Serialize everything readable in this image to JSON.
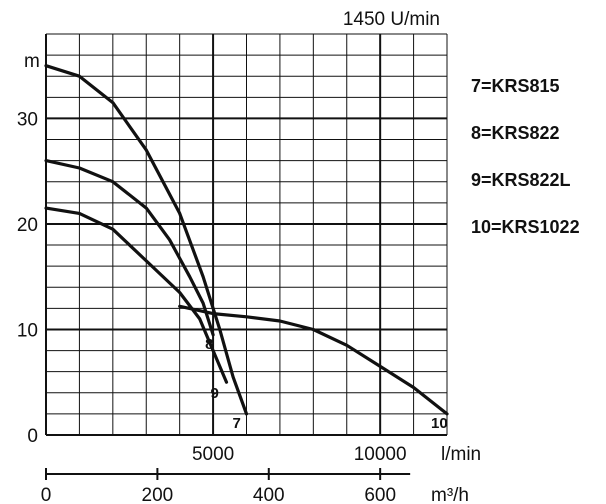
{
  "chart_data": {
    "type": "line",
    "title": "1450 U/min",
    "ylabel": "m",
    "x_primary_label": "l/min",
    "x_secondary_label": "m³/h",
    "xlim_lmin": [
      0,
      12000
    ],
    "ylim": [
      0,
      38
    ],
    "x_primary_ticks": [
      "5000",
      "10000"
    ],
    "x_primary_tick_values": [
      5000,
      10000
    ],
    "x_secondary_ticks": [
      "0",
      "200",
      "400",
      "600"
    ],
    "x_secondary_tick_values": [
      0,
      200,
      400,
      600
    ],
    "y_ticks": [
      "0",
      "10",
      "20",
      "30"
    ],
    "y_tick_values": [
      0,
      10,
      20,
      30
    ],
    "grid": true,
    "legend_position": "right",
    "series": [
      {
        "id": "7",
        "name": "7=KRS815",
        "label": "7",
        "points": [
          [
            0,
            35
          ],
          [
            1000,
            34
          ],
          [
            2000,
            31.5
          ],
          [
            3000,
            27
          ],
          [
            4000,
            21
          ],
          [
            4700,
            15
          ],
          [
            5200,
            10
          ],
          [
            5600,
            5.5
          ],
          [
            6000,
            2
          ]
        ]
      },
      {
        "id": "8",
        "name": "8=KRS822",
        "label": "8",
        "points": [
          [
            0,
            26
          ],
          [
            1000,
            25.3
          ],
          [
            2000,
            24
          ],
          [
            3000,
            21.5
          ],
          [
            3700,
            18.5
          ],
          [
            4300,
            15
          ],
          [
            4700,
            12.5
          ],
          [
            5000,
            9.5
          ]
        ]
      },
      {
        "id": "9",
        "name": "9=KRS822L",
        "label": "9",
        "points": [
          [
            0,
            21.5
          ],
          [
            1000,
            21
          ],
          [
            2000,
            19.5
          ],
          [
            3000,
            16.5
          ],
          [
            4000,
            13.5
          ],
          [
            4600,
            11
          ],
          [
            5000,
            8
          ],
          [
            5400,
            5
          ]
        ]
      },
      {
        "id": "10",
        "name": "10=KRS1022",
        "label": "10",
        "points": [
          [
            4000,
            12.2
          ],
          [
            5000,
            11.5
          ],
          [
            6000,
            11.2
          ],
          [
            7000,
            10.8
          ],
          [
            8000,
            10
          ],
          [
            9000,
            8.5
          ],
          [
            10000,
            6.5
          ],
          [
            11000,
            4.5
          ],
          [
            12000,
            2
          ]
        ]
      }
    ]
  }
}
